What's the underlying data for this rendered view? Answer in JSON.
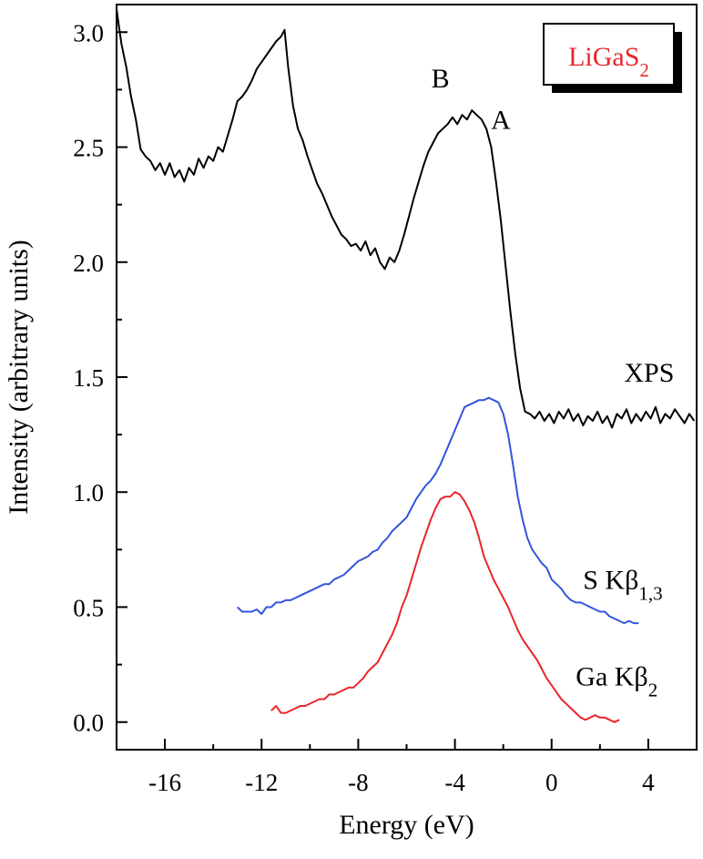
{
  "chart_data": {
    "type": "line",
    "xlabel": "Energy (eV)",
    "ylabel": "Intensity (arbitrary units)",
    "xlim": [
      -18,
      6
    ],
    "ylim": [
      -0.12,
      3.12
    ],
    "x_ticks": [
      "-16",
      "-12",
      "-8",
      "-4",
      "0",
      "4"
    ],
    "y_ticks": [
      "0.0",
      "0.5",
      "1.0",
      "1.5",
      "2.0",
      "2.5",
      "3.0"
    ],
    "legend_box": {
      "text": "LiGaS",
      "subscript": "2",
      "color": "#e8262b",
      "placement": "top-right"
    },
    "annotations": [
      {
        "text": "B",
        "x": -4.6,
        "y": 2.76
      },
      {
        "text": "A",
        "x": -2.1,
        "y": 2.58
      }
    ],
    "series": [
      {
        "name": "XPS",
        "label_subscript": "",
        "color": "#000000",
        "label_at": {
          "x": 3.0,
          "y": 1.48
        },
        "points": [
          [
            -18.0,
            3.1
          ],
          [
            -17.8,
            2.95
          ],
          [
            -17.6,
            2.85
          ],
          [
            -17.4,
            2.72
          ],
          [
            -17.2,
            2.62
          ],
          [
            -17.0,
            2.49
          ],
          [
            -16.8,
            2.46
          ],
          [
            -16.6,
            2.44
          ],
          [
            -16.4,
            2.4
          ],
          [
            -16.2,
            2.43
          ],
          [
            -16.0,
            2.38
          ],
          [
            -15.8,
            2.43
          ],
          [
            -15.6,
            2.37
          ],
          [
            -15.4,
            2.4
          ],
          [
            -15.2,
            2.35
          ],
          [
            -15.0,
            2.41
          ],
          [
            -14.8,
            2.38
          ],
          [
            -14.6,
            2.45
          ],
          [
            -14.4,
            2.41
          ],
          [
            -14.2,
            2.46
          ],
          [
            -14.0,
            2.44
          ],
          [
            -13.8,
            2.5
          ],
          [
            -13.6,
            2.48
          ],
          [
            -13.4,
            2.55
          ],
          [
            -13.2,
            2.62
          ],
          [
            -13.0,
            2.7
          ],
          [
            -12.8,
            2.72
          ],
          [
            -12.6,
            2.75
          ],
          [
            -12.4,
            2.79
          ],
          [
            -12.2,
            2.84
          ],
          [
            -12.0,
            2.87
          ],
          [
            -11.8,
            2.9
          ],
          [
            -11.6,
            2.93
          ],
          [
            -11.4,
            2.96
          ],
          [
            -11.2,
            2.98
          ],
          [
            -11.05,
            3.01
          ],
          [
            -10.9,
            2.85
          ],
          [
            -10.7,
            2.68
          ],
          [
            -10.5,
            2.58
          ],
          [
            -10.3,
            2.53
          ],
          [
            -10.1,
            2.46
          ],
          [
            -9.9,
            2.4
          ],
          [
            -9.7,
            2.34
          ],
          [
            -9.5,
            2.3
          ],
          [
            -9.3,
            2.25
          ],
          [
            -9.1,
            2.2
          ],
          [
            -8.9,
            2.16
          ],
          [
            -8.7,
            2.12
          ],
          [
            -8.5,
            2.1
          ],
          [
            -8.3,
            2.07
          ],
          [
            -8.1,
            2.08
          ],
          [
            -7.9,
            2.05
          ],
          [
            -7.7,
            2.09
          ],
          [
            -7.5,
            2.03
          ],
          [
            -7.3,
            2.06
          ],
          [
            -7.1,
            2.0
          ],
          [
            -6.9,
            1.97
          ],
          [
            -6.7,
            2.02
          ],
          [
            -6.5,
            2.0
          ],
          [
            -6.3,
            2.05
          ],
          [
            -6.1,
            2.12
          ],
          [
            -5.9,
            2.2
          ],
          [
            -5.7,
            2.28
          ],
          [
            -5.5,
            2.35
          ],
          [
            -5.3,
            2.42
          ],
          [
            -5.1,
            2.48
          ],
          [
            -4.9,
            2.52
          ],
          [
            -4.7,
            2.56
          ],
          [
            -4.5,
            2.58
          ],
          [
            -4.3,
            2.6
          ],
          [
            -4.1,
            2.63
          ],
          [
            -3.9,
            2.6
          ],
          [
            -3.7,
            2.64
          ],
          [
            -3.5,
            2.62
          ],
          [
            -3.3,
            2.66
          ],
          [
            -3.1,
            2.64
          ],
          [
            -2.9,
            2.62
          ],
          [
            -2.7,
            2.58
          ],
          [
            -2.5,
            2.5
          ],
          [
            -2.3,
            2.35
          ],
          [
            -2.1,
            2.18
          ],
          [
            -1.9,
            1.98
          ],
          [
            -1.7,
            1.78
          ],
          [
            -1.5,
            1.6
          ],
          [
            -1.3,
            1.45
          ],
          [
            -1.1,
            1.35
          ],
          [
            -0.9,
            1.34
          ],
          [
            -0.7,
            1.32
          ],
          [
            -0.5,
            1.35
          ],
          [
            -0.3,
            1.31
          ],
          [
            -0.1,
            1.34
          ],
          [
            0.1,
            1.3
          ],
          [
            0.3,
            1.35
          ],
          [
            0.5,
            1.32
          ],
          [
            0.7,
            1.36
          ],
          [
            0.9,
            1.31
          ],
          [
            1.1,
            1.34
          ],
          [
            1.3,
            1.29
          ],
          [
            1.5,
            1.33
          ],
          [
            1.7,
            1.31
          ],
          [
            1.9,
            1.35
          ],
          [
            2.1,
            1.3
          ],
          [
            2.3,
            1.33
          ],
          [
            2.5,
            1.28
          ],
          [
            2.7,
            1.34
          ],
          [
            2.9,
            1.32
          ],
          [
            3.1,
            1.36
          ],
          [
            3.3,
            1.3
          ],
          [
            3.5,
            1.34
          ],
          [
            3.7,
            1.31
          ],
          [
            3.9,
            1.35
          ],
          [
            4.1,
            1.32
          ],
          [
            4.3,
            1.37
          ],
          [
            4.5,
            1.3
          ],
          [
            4.7,
            1.34
          ],
          [
            4.9,
            1.32
          ],
          [
            5.1,
            1.36
          ],
          [
            5.3,
            1.33
          ],
          [
            5.5,
            1.3
          ],
          [
            5.7,
            1.34
          ],
          [
            5.9,
            1.31
          ]
        ]
      },
      {
        "name": "S Kβ",
        "label_subscript": "1,3",
        "color": "#3355dd",
        "label_at": {
          "x": 1.3,
          "y": 0.58
        },
        "points": [
          [
            -13.0,
            0.5
          ],
          [
            -12.8,
            0.48
          ],
          [
            -12.6,
            0.48
          ],
          [
            -12.4,
            0.48
          ],
          [
            -12.2,
            0.49
          ],
          [
            -12.0,
            0.47
          ],
          [
            -11.8,
            0.5
          ],
          [
            -11.6,
            0.5
          ],
          [
            -11.4,
            0.52
          ],
          [
            -11.2,
            0.52
          ],
          [
            -11.0,
            0.53
          ],
          [
            -10.8,
            0.53
          ],
          [
            -10.6,
            0.54
          ],
          [
            -10.4,
            0.55
          ],
          [
            -10.2,
            0.56
          ],
          [
            -10.0,
            0.57
          ],
          [
            -9.8,
            0.58
          ],
          [
            -9.6,
            0.59
          ],
          [
            -9.4,
            0.6
          ],
          [
            -9.2,
            0.6
          ],
          [
            -9.0,
            0.62
          ],
          [
            -8.8,
            0.63
          ],
          [
            -8.6,
            0.64
          ],
          [
            -8.4,
            0.66
          ],
          [
            -8.2,
            0.68
          ],
          [
            -8.0,
            0.7
          ],
          [
            -7.8,
            0.71
          ],
          [
            -7.6,
            0.72
          ],
          [
            -7.4,
            0.74
          ],
          [
            -7.2,
            0.75
          ],
          [
            -7.0,
            0.78
          ],
          [
            -6.8,
            0.8
          ],
          [
            -6.6,
            0.83
          ],
          [
            -6.4,
            0.85
          ],
          [
            -6.2,
            0.87
          ],
          [
            -6.0,
            0.89
          ],
          [
            -5.8,
            0.93
          ],
          [
            -5.6,
            0.97
          ],
          [
            -5.4,
            1.0
          ],
          [
            -5.2,
            1.03
          ],
          [
            -5.0,
            1.05
          ],
          [
            -4.8,
            1.08
          ],
          [
            -4.6,
            1.12
          ],
          [
            -4.4,
            1.17
          ],
          [
            -4.2,
            1.22
          ],
          [
            -4.0,
            1.27
          ],
          [
            -3.8,
            1.32
          ],
          [
            -3.6,
            1.37
          ],
          [
            -3.4,
            1.38
          ],
          [
            -3.2,
            1.39
          ],
          [
            -3.0,
            1.4
          ],
          [
            -2.8,
            1.4
          ],
          [
            -2.6,
            1.41
          ],
          [
            -2.4,
            1.4
          ],
          [
            -2.2,
            1.39
          ],
          [
            -2.0,
            1.34
          ],
          [
            -1.8,
            1.25
          ],
          [
            -1.6,
            1.12
          ],
          [
            -1.4,
            0.98
          ],
          [
            -1.2,
            0.88
          ],
          [
            -1.0,
            0.8
          ],
          [
            -0.8,
            0.75
          ],
          [
            -0.6,
            0.72
          ],
          [
            -0.4,
            0.69
          ],
          [
            -0.2,
            0.67
          ],
          [
            0.0,
            0.62
          ],
          [
            0.2,
            0.6
          ],
          [
            0.4,
            0.58
          ],
          [
            0.6,
            0.55
          ],
          [
            0.8,
            0.53
          ],
          [
            1.0,
            0.52
          ],
          [
            1.2,
            0.52
          ],
          [
            1.4,
            0.51
          ],
          [
            1.6,
            0.5
          ],
          [
            1.8,
            0.49
          ],
          [
            2.0,
            0.48
          ],
          [
            2.2,
            0.48
          ],
          [
            2.4,
            0.46
          ],
          [
            2.6,
            0.45
          ],
          [
            2.8,
            0.44
          ],
          [
            3.0,
            0.43
          ],
          [
            3.2,
            0.44
          ],
          [
            3.4,
            0.43
          ],
          [
            3.6,
            0.43
          ]
        ]
      },
      {
        "name": "Ga Kβ",
        "label_subscript": "2",
        "color": "#e8262b",
        "label_at": {
          "x": 1.0,
          "y": 0.16
        },
        "points": [
          [
            -11.6,
            0.05
          ],
          [
            -11.4,
            0.07
          ],
          [
            -11.2,
            0.04
          ],
          [
            -11.0,
            0.04
          ],
          [
            -10.8,
            0.05
          ],
          [
            -10.6,
            0.06
          ],
          [
            -10.4,
            0.07
          ],
          [
            -10.2,
            0.07
          ],
          [
            -10.0,
            0.08
          ],
          [
            -9.8,
            0.09
          ],
          [
            -9.6,
            0.1
          ],
          [
            -9.4,
            0.1
          ],
          [
            -9.2,
            0.12
          ],
          [
            -9.0,
            0.12
          ],
          [
            -8.8,
            0.13
          ],
          [
            -8.6,
            0.14
          ],
          [
            -8.4,
            0.15
          ],
          [
            -8.2,
            0.15
          ],
          [
            -8.0,
            0.17
          ],
          [
            -7.8,
            0.19
          ],
          [
            -7.6,
            0.22
          ],
          [
            -7.4,
            0.24
          ],
          [
            -7.2,
            0.26
          ],
          [
            -7.0,
            0.3
          ],
          [
            -6.8,
            0.34
          ],
          [
            -6.6,
            0.38
          ],
          [
            -6.4,
            0.43
          ],
          [
            -6.2,
            0.5
          ],
          [
            -6.0,
            0.55
          ],
          [
            -5.8,
            0.62
          ],
          [
            -5.6,
            0.69
          ],
          [
            -5.4,
            0.76
          ],
          [
            -5.2,
            0.82
          ],
          [
            -5.0,
            0.88
          ],
          [
            -4.8,
            0.93
          ],
          [
            -4.6,
            0.97
          ],
          [
            -4.4,
            0.98
          ],
          [
            -4.2,
            0.98
          ],
          [
            -4.0,
            1.0
          ],
          [
            -3.8,
            0.99
          ],
          [
            -3.6,
            0.96
          ],
          [
            -3.4,
            0.92
          ],
          [
            -3.2,
            0.87
          ],
          [
            -3.0,
            0.8
          ],
          [
            -2.8,
            0.72
          ],
          [
            -2.6,
            0.67
          ],
          [
            -2.4,
            0.62
          ],
          [
            -2.2,
            0.58
          ],
          [
            -2.0,
            0.54
          ],
          [
            -1.8,
            0.5
          ],
          [
            -1.6,
            0.45
          ],
          [
            -1.4,
            0.4
          ],
          [
            -1.2,
            0.36
          ],
          [
            -1.0,
            0.33
          ],
          [
            -0.8,
            0.3
          ],
          [
            -0.6,
            0.27
          ],
          [
            -0.4,
            0.23
          ],
          [
            -0.2,
            0.19
          ],
          [
            0.0,
            0.16
          ],
          [
            0.2,
            0.13
          ],
          [
            0.4,
            0.1
          ],
          [
            0.6,
            0.08
          ],
          [
            0.8,
            0.06
          ],
          [
            1.0,
            0.04
          ],
          [
            1.2,
            0.02
          ],
          [
            1.4,
            0.01
          ],
          [
            1.6,
            0.02
          ],
          [
            1.8,
            0.03
          ],
          [
            2.0,
            0.02
          ],
          [
            2.2,
            0.02
          ],
          [
            2.4,
            0.01
          ],
          [
            2.6,
            0.0
          ],
          [
            2.8,
            0.01
          ]
        ]
      }
    ]
  }
}
